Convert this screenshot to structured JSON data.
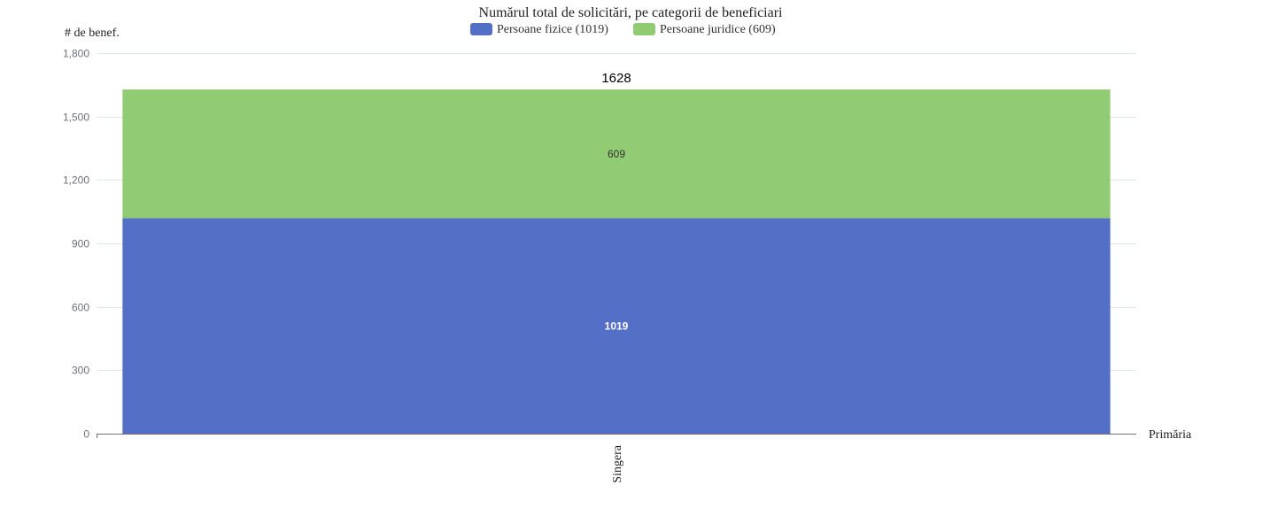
{
  "chart_data": {
    "type": "bar",
    "stacked": true,
    "title": "Numărul total de solicitări, pe categorii de beneficiari",
    "ylabel": "# de benef.",
    "xlabel": "Primăria",
    "categories": [
      "Singera"
    ],
    "series": [
      {
        "name": "Persoane fizice (1019)",
        "values": [
          1019
        ],
        "color": "#5470c6"
      },
      {
        "name": "Persoane juridice (609)",
        "values": [
          609
        ],
        "color": "#91cc75"
      }
    ],
    "totals": [
      1628
    ],
    "ylim": [
      0,
      1800
    ],
    "yticks": [
      "0",
      "300",
      "600",
      "900",
      "1,200",
      "1,500",
      "1,800"
    ],
    "legend_position": "top",
    "grid": true
  }
}
